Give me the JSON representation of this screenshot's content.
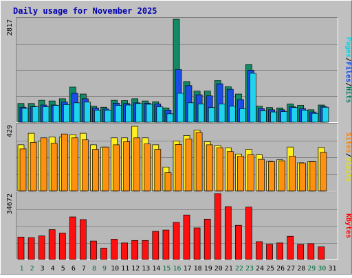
{
  "chart_data": {
    "type": "bar",
    "title": "Daily usage for November 2025",
    "categories": [
      "1",
      "2",
      "3",
      "4",
      "5",
      "6",
      "7",
      "8",
      "9",
      "10",
      "11",
      "12",
      "13",
      "14",
      "15",
      "16",
      "17",
      "18",
      "19",
      "20",
      "21",
      "22",
      "23",
      "24",
      "25",
      "26",
      "27",
      "28",
      "29",
      "30",
      "31"
    ],
    "weekend_days": [
      "1",
      "2",
      "8",
      "9",
      "15",
      "16",
      "22",
      "23",
      "29",
      "30"
    ],
    "panels": [
      {
        "name": "pages-files-hits",
        "ymax_label": "2817",
        "ymax": 2817,
        "axis_label_parts": [
          {
            "text": "Pages",
            "color": "#00d8e8"
          },
          {
            "text": "/",
            "color": "#000000"
          },
          {
            "text": "Files",
            "color": "#0040ff"
          },
          {
            "text": "/",
            "color": "#000000"
          },
          {
            "text": "Hits",
            "color": "#008060"
          }
        ],
        "series": [
          {
            "name": "Hits",
            "color": "#138a66",
            "values": [
              510,
              510,
              600,
              580,
              640,
              960,
              770,
              440,
              410,
              600,
              590,
              640,
              580,
              560,
              390,
              2817,
              1110,
              850,
              850,
              1140,
              970,
              770,
              1580,
              440,
              400,
              390,
              500,
              460,
              340,
              470,
              0
            ]
          },
          {
            "name": "Files",
            "color": "#1a4de6",
            "values": [
              410,
              430,
              470,
              470,
              550,
              790,
              640,
              390,
              360,
              520,
              510,
              530,
              520,
              500,
              330,
              1440,
              1000,
              750,
              720,
              1050,
              900,
              620,
              1420,
              370,
              340,
              340,
              420,
              370,
              280,
              430,
              0
            ]
          },
          {
            "name": "Pages",
            "color": "#1fd2ee",
            "values": [
              380,
              420,
              420,
              460,
              480,
              530,
              550,
              330,
              330,
              460,
              470,
              510,
              490,
              420,
              230,
              790,
              530,
              500,
              400,
              500,
              440,
              370,
              1340,
              310,
              280,
              290,
              400,
              330,
              240,
              410,
              0
            ]
          }
        ]
      },
      {
        "name": "visits-sites",
        "ymax_label": "429",
        "ymax": 429,
        "axis_label_parts": [
          {
            "text": "Sites",
            "color": "#ff8000"
          },
          {
            "text": "/",
            "color": "#000000"
          },
          {
            "text": "Visits",
            "color": "#e0e000"
          }
        ],
        "series": [
          {
            "name": "Visits",
            "color": "#ffee20",
            "values": [
              300,
              375,
              325,
              350,
              350,
              365,
              375,
              300,
              285,
              345,
              345,
              420,
              345,
              300,
              155,
              325,
              360,
              395,
              320,
              295,
              280,
              240,
              270,
              235,
              192,
              202,
              285,
              183,
              191,
              282,
              0
            ]
          },
          {
            "name": "Sites",
            "color": "#ff9010",
            "values": [
              273,
              315,
              345,
              310,
              370,
              345,
              332,
              270,
              285,
              300,
              320,
              345,
              305,
              270,
              118,
              302,
              338,
              380,
              300,
              280,
              256,
              225,
              235,
              205,
              190,
              195,
              225,
              180,
              190,
              250,
              0
            ]
          }
        ]
      },
      {
        "name": "kbytes",
        "ymax_label": "34672",
        "ymax": 34672,
        "axis_label_parts": [
          {
            "text": "KBytes",
            "color": "#ff0000"
          }
        ],
        "series": [
          {
            "name": "KBytes",
            "color": "#ff1010",
            "values": [
              11800,
              11500,
              12400,
              15700,
              13900,
              22400,
              21000,
              9700,
              6000,
              10700,
              8700,
              10000,
              10000,
              14800,
              15500,
              19500,
              23400,
              16600,
              21200,
              34672,
              27800,
              18000,
              27600,
              9400,
              8000,
              8700,
              12200,
              7900,
              8300,
              6600,
              0
            ]
          }
        ]
      }
    ]
  }
}
